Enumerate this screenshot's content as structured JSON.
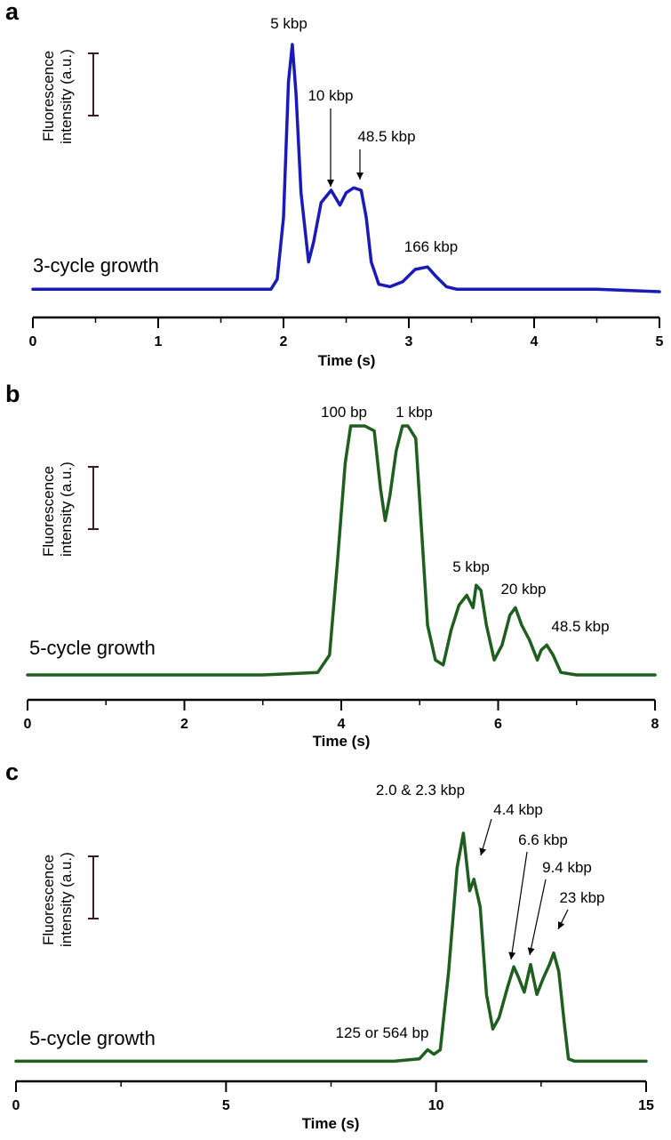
{
  "chart_data": [
    {
      "panel": "a",
      "type": "line",
      "xlabel": "Time (s)",
      "ylabel": [
        "Fluorescence",
        "intensity (a.u.)"
      ],
      "xlim": [
        0,
        5
      ],
      "xticks": [
        "0",
        "1",
        "2",
        "3",
        "4",
        "5"
      ],
      "condition": "3-cycle growth",
      "color": "#1a1ab8",
      "series": [
        {
          "x": [
            0,
            0.5,
            1.0,
            1.5,
            1.9,
            1.95,
            2.0,
            2.04,
            2.07,
            2.1,
            2.14,
            2.2,
            2.24,
            2.3,
            2.38,
            2.45,
            2.5,
            2.56,
            2.62,
            2.66,
            2.7,
            2.76,
            2.85,
            2.95,
            3.05,
            3.15,
            3.22,
            3.3,
            3.38,
            3.5,
            4.0,
            4.5,
            5.0
          ],
          "y": [
            0.01,
            0.01,
            0.01,
            0.01,
            0.01,
            0.05,
            0.3,
            0.85,
            1.0,
            0.8,
            0.4,
            0.12,
            0.2,
            0.36,
            0.41,
            0.35,
            0.4,
            0.42,
            0.41,
            0.3,
            0.12,
            0.03,
            0.02,
            0.04,
            0.09,
            0.1,
            0.06,
            0.02,
            0.01,
            0.01,
            0.01,
            0.01,
            0.0
          ]
        }
      ],
      "annotations": [
        {
          "text": "5 kbp",
          "x": 2.07
        },
        {
          "text": "10 kbp",
          "x": 2.38,
          "arrow": true
        },
        {
          "text": "48.5 kbp",
          "x": 2.6,
          "arrow": true
        },
        {
          "text": "166 kbp",
          "x": 3.15
        }
      ]
    },
    {
      "panel": "b",
      "type": "line",
      "xlabel": "Time (s)",
      "ylabel": [
        "Fluorescence",
        "intensity (a.u.)"
      ],
      "xlim": [
        0,
        8
      ],
      "xticks": [
        "0",
        "2",
        "4",
        "6",
        "8"
      ],
      "condition": "5-cycle growth",
      "color": "#1e5e1e",
      "series": [
        {
          "x": [
            0,
            1,
            2,
            3,
            3.7,
            3.85,
            3.95,
            4.05,
            4.12,
            4.2,
            4.3,
            4.42,
            4.5,
            4.56,
            4.62,
            4.7,
            4.78,
            4.85,
            4.95,
            5.02,
            5.1,
            5.2,
            5.3,
            5.4,
            5.5,
            5.6,
            5.68,
            5.72,
            5.78,
            5.85,
            5.95,
            6.05,
            6.15,
            6.22,
            6.3,
            6.4,
            6.5,
            6.55,
            6.62,
            6.7,
            6.8,
            7.0,
            7.5,
            8.0
          ],
          "y": [
            0.0,
            0.0,
            0.0,
            0.0,
            0.01,
            0.08,
            0.45,
            0.85,
            1.0,
            1.0,
            1.0,
            0.98,
            0.75,
            0.62,
            0.72,
            0.9,
            1.0,
            1.0,
            0.95,
            0.6,
            0.2,
            0.06,
            0.04,
            0.18,
            0.28,
            0.32,
            0.27,
            0.36,
            0.34,
            0.2,
            0.06,
            0.12,
            0.24,
            0.27,
            0.2,
            0.14,
            0.06,
            0.1,
            0.12,
            0.08,
            0.01,
            0.0,
            0.0,
            0.0
          ]
        }
      ],
      "annotations": [
        {
          "text": "100 bp",
          "x": 4.25
        },
        {
          "text": "1 kbp",
          "x": 4.85
        },
        {
          "text": "5 kbp",
          "x": 5.72
        },
        {
          "text": "20 kbp",
          "x": 6.22
        },
        {
          "text": "48.5 kbp",
          "x": 6.62
        }
      ]
    },
    {
      "panel": "c",
      "type": "line",
      "xlabel": "Time (s)",
      "ylabel": [
        "Fluorescence",
        "intensity (a.u.)"
      ],
      "xlim": [
        0,
        15
      ],
      "xticks": [
        "0",
        "5",
        "10",
        "15"
      ],
      "condition": "5-cycle growth",
      "color": "#1e5e1e",
      "series": [
        {
          "x": [
            0,
            3,
            6,
            9,
            9.6,
            9.8,
            9.95,
            10.1,
            10.3,
            10.5,
            10.65,
            10.8,
            10.9,
            11.05,
            11.2,
            11.35,
            11.5,
            11.7,
            11.85,
            11.95,
            12.1,
            12.25,
            12.4,
            12.55,
            12.7,
            12.8,
            12.92,
            13.05,
            13.15,
            13.3,
            14,
            15
          ],
          "y": [
            0.01,
            0.01,
            0.01,
            0.01,
            0.02,
            0.06,
            0.04,
            0.06,
            0.4,
            0.85,
            1.0,
            0.75,
            0.8,
            0.68,
            0.3,
            0.15,
            0.2,
            0.33,
            0.42,
            0.38,
            0.31,
            0.43,
            0.3,
            0.37,
            0.43,
            0.48,
            0.4,
            0.18,
            0.02,
            0.01,
            0.01,
            0.01
          ]
        }
      ],
      "annotations": [
        {
          "text": "2.0 & 2.3 kbp",
          "x": 10.65
        },
        {
          "text": "4.4 kbp",
          "x": 11.0,
          "arrow": true
        },
        {
          "text": "6.6 kbp",
          "x": 11.9,
          "arrow": true
        },
        {
          "text": "9.4 kbp",
          "x": 12.3,
          "arrow": true
        },
        {
          "text": "23 kbp",
          "x": 12.8,
          "arrow": true
        },
        {
          "text": "125 or 564 bp",
          "x": 9.8
        }
      ]
    }
  ]
}
